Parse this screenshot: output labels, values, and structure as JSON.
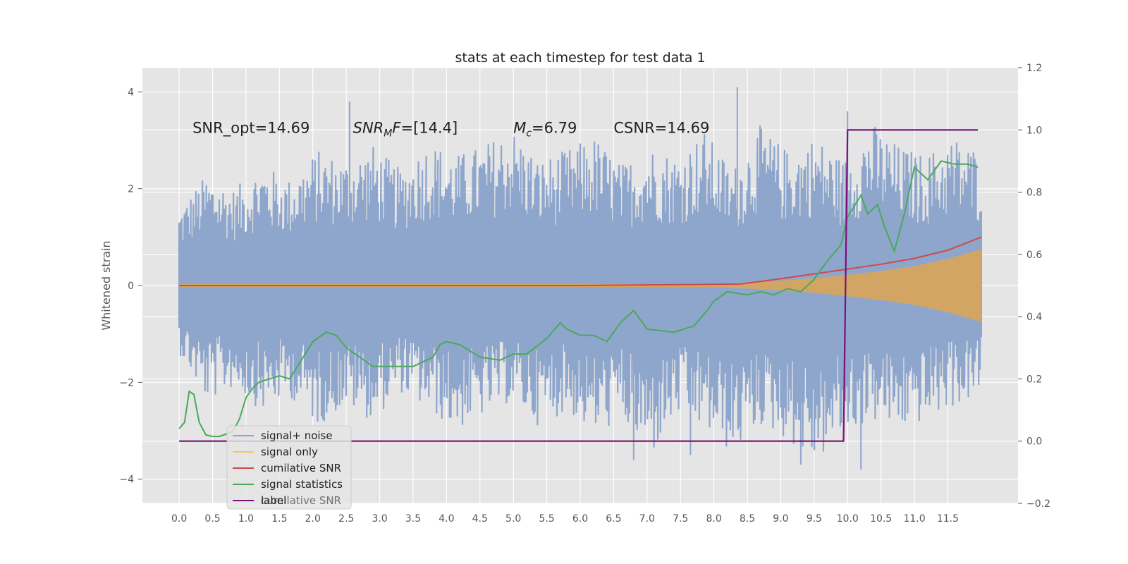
{
  "chart_data": {
    "type": "line",
    "title": "stats at each timestep for test data 1",
    "ylabel": "Whitened strain",
    "y2label": "",
    "xlim": [
      -0.55,
      12.55
    ],
    "ylim": [
      -4.5,
      4.5
    ],
    "y2lim": [
      -0.2,
      1.2
    ],
    "x_ticks": [
      0.0,
      0.5,
      1.0,
      1.5,
      2.0,
      2.5,
      3.0,
      3.5,
      4.0,
      4.5,
      5.0,
      5.5,
      6.0,
      6.5,
      7.0,
      7.5,
      8.0,
      8.5,
      9.0,
      9.5,
      10.0,
      10.5,
      11.0,
      11.5
    ],
    "x_tick_labels": [
      "0.0",
      "0.5",
      "1.0",
      "1.5",
      "2.0",
      "2.5",
      "3.0",
      "3.5",
      "4.0",
      "4.5",
      "5.0",
      "5.5",
      "6.0",
      "6.5",
      "7.0",
      "7.5",
      "8.0",
      "8.5",
      "9.0",
      "9.5",
      "10.0",
      "10.5",
      "11.0",
      "11.5"
    ],
    "y_ticks": [
      -4,
      -2,
      0,
      2,
      4
    ],
    "y_tick_labels": [
      "−4",
      "−2",
      "0",
      "2",
      "4"
    ],
    "y2_ticks": [
      -0.2,
      0.0,
      0.2,
      0.4,
      0.6,
      0.8,
      1.0,
      1.2
    ],
    "y2_tick_labels": [
      "−0.2",
      "0.0",
      "0.2",
      "0.4",
      "0.6",
      "0.8",
      "1.0",
      "1.2"
    ],
    "annotations": [
      {
        "plain": "SNR_opt=14.69",
        "x": 0.2,
        "y": 3.3
      },
      {
        "italic": "SNR",
        "sub": "M",
        "italic2": "F",
        "rest": "=[14.4]",
        "x": 2.6,
        "y": 3.3
      },
      {
        "italic": "M",
        "sub": "c",
        "rest": "=6.79",
        "x": 5.0,
        "y": 3.3
      },
      {
        "plain": "CSNR=14.69",
        "x": 6.5,
        "y": 3.3
      }
    ],
    "legend": {
      "placement": "lower-left",
      "entries": [
        {
          "label": "signal+ noise",
          "color": "#8fa6cc"
        },
        {
          "label": "signal only",
          "color": "#f2c65a"
        },
        {
          "label": "cumilative SNR",
          "color": "#cc4b4b"
        },
        {
          "label": "signal statistics",
          "color": "#4aa85a"
        },
        {
          "label": "label",
          "color": "#7a0f7a"
        }
      ],
      "ghost_text": "cumilative SNR"
    },
    "series": [
      {
        "name": "signal+ noise",
        "axis": "left",
        "style": "noise-band",
        "color": "#8fa6cc",
        "x_range": [
          0.0,
          12.0
        ],
        "upper_envelope": [
          1.6,
          2.3,
          2.0,
          2.5,
          2.2,
          2.8,
          2.6,
          2.9,
          2.4,
          3.0,
          2.7,
          2.9,
          3.3,
          2.6,
          2.8,
          3.1,
          2.5,
          2.9,
          2.7,
          3.2,
          2.4,
          3.3,
          2.8,
          3.1,
          2.6,
          3.4,
          2.9,
          2.7,
          3.1,
          2.8
        ],
        "lower_envelope": [
          -1.4,
          -2.4,
          -2.1,
          -2.6,
          -2.3,
          -2.9,
          -2.5,
          -2.8,
          -2.2,
          -2.6,
          -3.0,
          -2.7,
          -2.4,
          -2.9,
          -2.6,
          -3.1,
          -2.8,
          -3.6,
          -2.7,
          -3.0,
          -3.5,
          -2.9,
          -3.2,
          -3.7,
          -3.1,
          -2.8,
          -3.0,
          -2.8,
          -2.5,
          -2.3
        ],
        "spikes": [
          {
            "x": 2.55,
            "y": 3.8
          },
          {
            "x": 6.0,
            "y": 1.3
          },
          {
            "x": 8.35,
            "y": 4.1
          },
          {
            "x": 10.0,
            "y": 3.6
          },
          {
            "x": 10.2,
            "y": -3.8
          },
          {
            "x": 9.3,
            "y": -3.7
          },
          {
            "x": 6.8,
            "y": -3.6
          },
          {
            "x": 7.65,
            "y": -3.5
          }
        ]
      },
      {
        "name": "signal only",
        "axis": "left",
        "style": "chirp-envelope",
        "color": "#d9a55a",
        "x": [
          0.0,
          8.0,
          8.5,
          9.0,
          9.5,
          10.0,
          10.5,
          11.0,
          11.5,
          12.0
        ],
        "amplitude": [
          0.03,
          0.03,
          0.06,
          0.1,
          0.15,
          0.22,
          0.3,
          0.4,
          0.55,
          0.75
        ]
      },
      {
        "name": "cumilative SNR",
        "axis": "left",
        "color": "#cc4b4b",
        "x": [
          0.0,
          6.0,
          8.4,
          8.5,
          9.0,
          9.5,
          10.0,
          10.5,
          11.0,
          11.5,
          12.0
        ],
        "y": [
          0.0,
          0.0,
          0.03,
          0.05,
          0.14,
          0.24,
          0.34,
          0.44,
          0.56,
          0.73,
          1.0
        ]
      },
      {
        "name": "signal statistics",
        "axis": "right",
        "color": "#4aa85a",
        "x": [
          0.0,
          0.08,
          0.15,
          0.22,
          0.3,
          0.4,
          0.5,
          0.6,
          0.8,
          0.9,
          1.0,
          1.1,
          1.2,
          1.5,
          1.65,
          1.8,
          2.0,
          2.2,
          2.35,
          2.5,
          2.7,
          2.9,
          3.1,
          3.5,
          3.8,
          3.9,
          4.0,
          4.2,
          4.5,
          4.8,
          5.0,
          5.2,
          5.5,
          5.7,
          5.8,
          6.0,
          6.2,
          6.4,
          6.6,
          6.8,
          7.0,
          7.4,
          7.7,
          7.9,
          8.0,
          8.2,
          8.5,
          8.7,
          8.9,
          9.1,
          9.3,
          9.5,
          9.7,
          9.9,
          10.0,
          10.2,
          10.3,
          10.45,
          10.55,
          10.7,
          10.85,
          11.0,
          11.2,
          11.4,
          11.6,
          11.8,
          11.95
        ],
        "y": [
          0.04,
          0.06,
          0.16,
          0.15,
          0.06,
          0.02,
          0.015,
          0.015,
          0.03,
          0.07,
          0.14,
          0.17,
          0.19,
          0.21,
          0.2,
          0.25,
          0.32,
          0.35,
          0.34,
          0.3,
          0.27,
          0.24,
          0.24,
          0.24,
          0.27,
          0.31,
          0.32,
          0.31,
          0.27,
          0.26,
          0.28,
          0.28,
          0.33,
          0.38,
          0.36,
          0.34,
          0.34,
          0.32,
          0.38,
          0.42,
          0.36,
          0.35,
          0.37,
          0.42,
          0.45,
          0.48,
          0.47,
          0.48,
          0.47,
          0.49,
          0.48,
          0.52,
          0.58,
          0.63,
          0.72,
          0.79,
          0.73,
          0.76,
          0.69,
          0.61,
          0.73,
          0.88,
          0.84,
          0.9,
          0.89,
          0.89,
          0.88
        ]
      },
      {
        "name": "label",
        "axis": "right",
        "color": "#7a0f7a",
        "x": [
          0.0,
          9.94,
          10.0,
          11.95
        ],
        "y": [
          0.0,
          0.0,
          1.0,
          1.0
        ]
      }
    ]
  }
}
